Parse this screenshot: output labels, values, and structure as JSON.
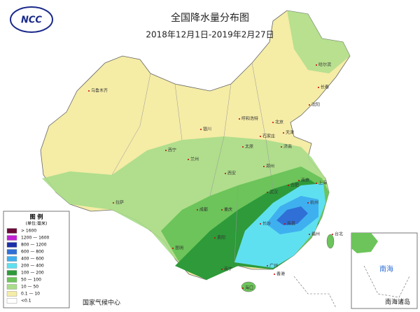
{
  "header": {
    "title": "全国降水量分布图",
    "subtitle": "2018年12月1日-2019年2月27日",
    "logo": "NCC"
  },
  "legend": {
    "title": "图 例",
    "unit": "(单位:毫米)",
    "items": [
      {
        "label": "> 1600",
        "color": "#6b0a3a"
      },
      {
        "label": "1200 — 1600",
        "color": "#c21fd6"
      },
      {
        "label": "800 — 1200",
        "color": "#1a2fa8"
      },
      {
        "label": "600 — 800",
        "color": "#2f6fd6"
      },
      {
        "label": "400 — 600",
        "color": "#3fb0ef"
      },
      {
        "label": "200 — 400",
        "color": "#5fe0f0"
      },
      {
        "label": "100 — 200",
        "color": "#2e9a3a"
      },
      {
        "label": "50 — 100",
        "color": "#6cc45a"
      },
      {
        "label": "10 — 50",
        "color": "#a9dd8a"
      },
      {
        "label": "0.1 — 10",
        "color": "#f5eca6"
      },
      {
        "label": "<0.1",
        "color": "#ffffff"
      }
    ]
  },
  "cities": [
    "乌鲁木齐",
    "哈尔滨",
    "长春",
    "沈阳",
    "呼和浩特",
    "北京",
    "天津",
    "石家庄",
    "太原",
    "济南",
    "银川",
    "西宁",
    "兰州",
    "郑州",
    "西安",
    "合肥",
    "南京",
    "上海",
    "杭州",
    "武汉",
    "拉萨",
    "成都",
    "重庆",
    "长沙",
    "南昌",
    "福州",
    "贵阳",
    "昆明",
    "南宁",
    "广州",
    "香港",
    "台北",
    "海口"
  ],
  "inset": {
    "label": "南海诸岛",
    "sea": "南海"
  },
  "footer": "国家气候中心"
}
